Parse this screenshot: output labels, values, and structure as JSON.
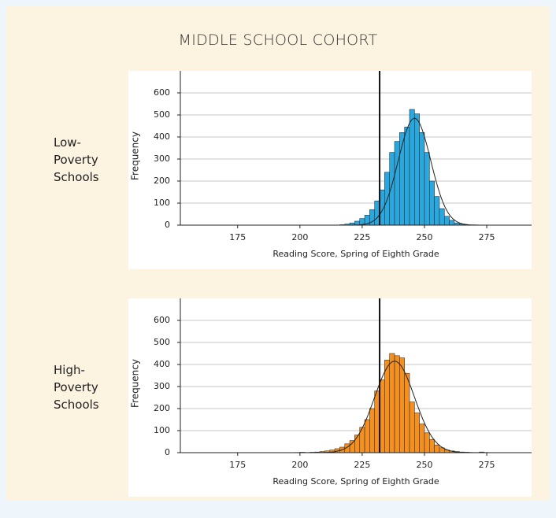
{
  "title": "MIDDLE SCHOOL COHORT",
  "chart_data": [
    {
      "type": "histogram",
      "group_label": "Low-Poverty Schools",
      "color": "#29a8e0",
      "xlabel": "Reading Score, Spring of Eighth Grade",
      "ylabel": "Frequency",
      "bins": [
        216,
        218,
        220,
        222,
        224,
        226,
        228,
        230,
        232,
        234,
        236,
        238,
        240,
        242,
        244,
        246,
        248,
        250,
        252,
        254,
        256,
        258,
        260,
        262,
        264,
        266,
        268
      ],
      "values": [
        2,
        5,
        10,
        18,
        30,
        45,
        70,
        110,
        160,
        240,
        330,
        380,
        420,
        445,
        525,
        505,
        420,
        330,
        200,
        130,
        75,
        40,
        22,
        10,
        5,
        2
      ],
      "xlim": [
        152,
        293
      ],
      "xticks": [
        175,
        200,
        225,
        250,
        275
      ],
      "ylim": [
        0,
        700
      ],
      "yticks": [
        0,
        100,
        200,
        300,
        400,
        500,
        600
      ],
      "grid": true,
      "reference_line": 232,
      "fit": {
        "mean": 246,
        "sd": 6.5,
        "peak": 485
      }
    },
    {
      "type": "histogram",
      "group_label": "High-Poverty Schools",
      "color": "#f5901e",
      "xlabel": "Reading Score, Spring of Eighth Grade",
      "ylabel": "Frequency",
      "bins": [
        198,
        200,
        202,
        204,
        206,
        208,
        210,
        212,
        214,
        216,
        218,
        220,
        222,
        224,
        226,
        228,
        230,
        232,
        234,
        236,
        238,
        240,
        242,
        244,
        246,
        248,
        250,
        252,
        254,
        256,
        258,
        260,
        262,
        264,
        266,
        268,
        270,
        272,
        274,
        276
      ],
      "values": [
        1,
        2,
        1,
        2,
        3,
        5,
        8,
        12,
        18,
        25,
        40,
        55,
        80,
        115,
        150,
        200,
        280,
        330,
        420,
        450,
        440,
        430,
        360,
        230,
        180,
        130,
        90,
        60,
        35,
        22,
        12,
        8,
        5,
        3,
        2,
        1,
        1,
        3,
        1
      ],
      "xlim": [
        152,
        293
      ],
      "xticks": [
        175,
        200,
        225,
        250,
        275
      ],
      "ylim": [
        0,
        700
      ],
      "yticks": [
        0,
        100,
        200,
        300,
        400,
        500,
        600
      ],
      "grid": true,
      "reference_line": 232,
      "fit": {
        "mean": 238,
        "sd": 8,
        "peak": 415
      }
    }
  ]
}
